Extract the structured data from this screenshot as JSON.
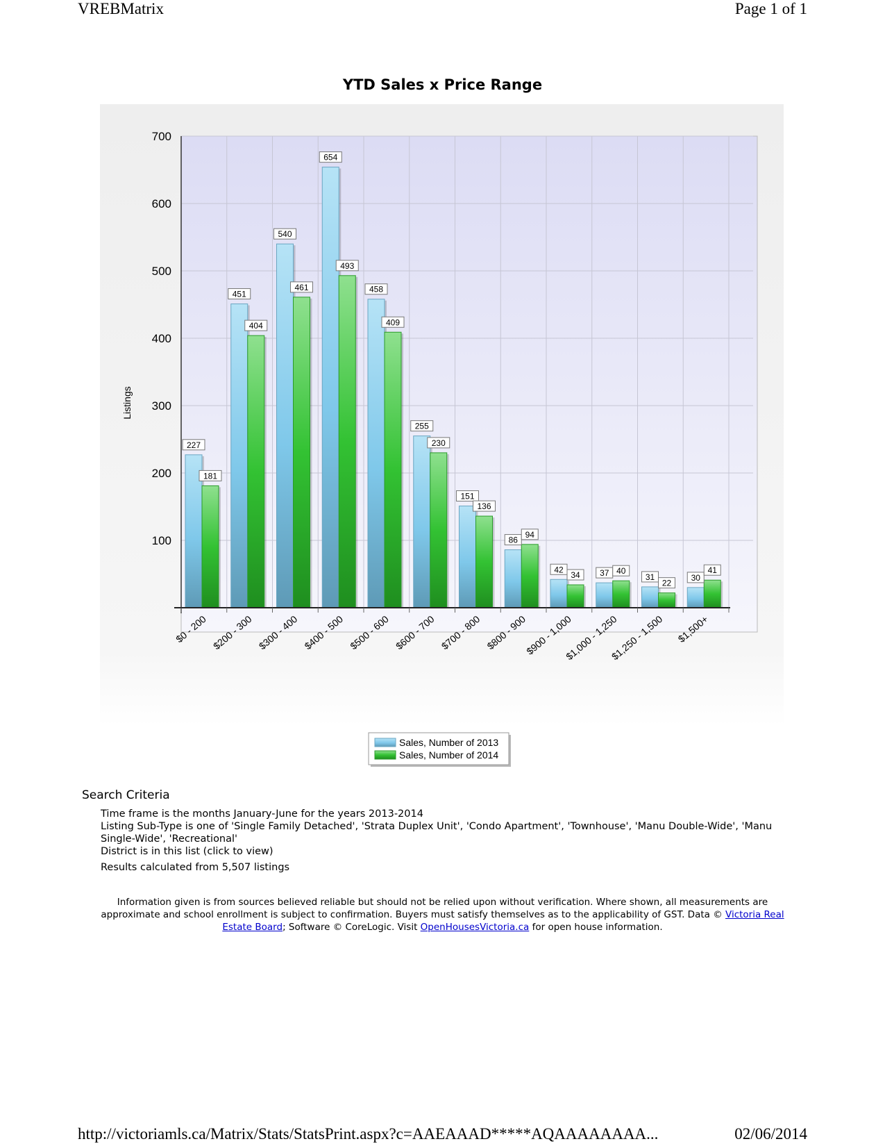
{
  "print_header": {
    "left": "VREBMatrix",
    "right": "Page 1 of 1"
  },
  "print_footer": {
    "url": "http://victoriamls.ca/Matrix/Stats/StatsPrint.aspx?c=AAEAAAD*****AQAAAAAAAA...",
    "date": "02/06/2014"
  },
  "chart_data": {
    "type": "bar",
    "title": "YTD Sales x Price Range",
    "ylabel": "Listings",
    "xlabel": "",
    "ylim": [
      0,
      700
    ],
    "yticks": [
      100,
      200,
      300,
      400,
      500,
      600,
      700
    ],
    "grid": true,
    "legend_position": "bottom-center",
    "categories": [
      "$0 - 200",
      "$200 - 300",
      "$300 - 400",
      "$400 - 500",
      "$500 - 600",
      "$600 - 700",
      "$700 - 800",
      "$800 - 900",
      "$900 - 1,000",
      "$1,000 - 1,250",
      "$1,250 - 1,500",
      "$1,500+"
    ],
    "series": [
      {
        "name": "Sales, Number of 2013",
        "color": "#7fc8ea",
        "values": [
          227,
          451,
          540,
          654,
          458,
          255,
          151,
          86,
          42,
          37,
          31,
          30
        ]
      },
      {
        "name": "Sales, Number of 2014",
        "color": "#33c233",
        "values": [
          181,
          404,
          461,
          493,
          409,
          230,
          136,
          94,
          34,
          40,
          22,
          41
        ]
      }
    ]
  },
  "criteria": {
    "heading": "Search Criteria",
    "lines": [
      "Time frame is the months January-June for the years 2013-2014",
      "Listing Sub-Type is one of 'Single Family Detached', 'Strata Duplex Unit', 'Condo Apartment', 'Townhouse', 'Manu Double-Wide', 'Manu Single-Wide', 'Recreational'",
      "District is in this list (click to view)"
    ],
    "results": "Results calculated from 5,507 listings"
  },
  "disclaimer": {
    "text1": "Information given is from sources believed reliable but should not be relied upon without verification. Where shown, all measurements are approximate and school enrollment is subject to confirmation. Buyers must satisfy themselves as to the applicability of GST. Data © ",
    "link1": "Victoria Real Estate Board",
    "text2": "; Software © CoreLogic. Visit ",
    "link2": "OpenHousesVictoria.ca",
    "text3": " for open house information."
  }
}
